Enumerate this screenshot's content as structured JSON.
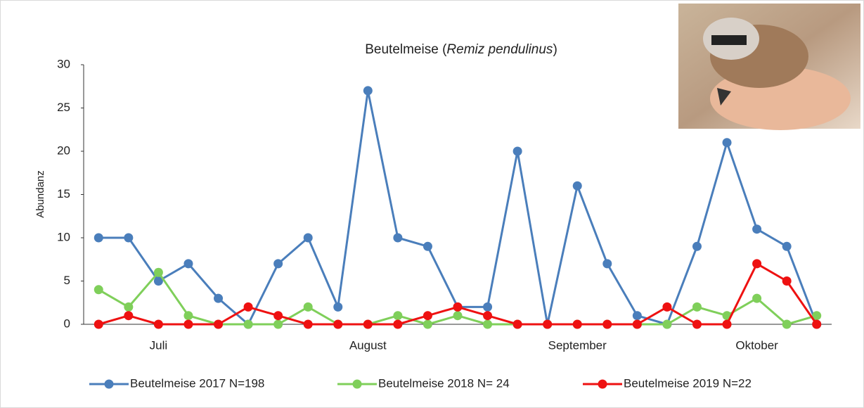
{
  "chart_data": {
    "type": "line",
    "title": [
      "Beutelmeise (",
      "Remiz pendulinus",
      ")"
    ],
    "y_label": "Abundanz",
    "categories": [
      null,
      null,
      "Juli",
      null,
      null,
      null,
      null,
      null,
      null,
      "August",
      null,
      null,
      null,
      null,
      null,
      null,
      "September",
      null,
      null,
      null,
      null,
      null,
      "Oktober",
      null,
      null
    ],
    "series": [
      {
        "name": "Beutelmeise 2017 N=198",
        "color": "#4a7ebb",
        "values": [
          10,
          10,
          5,
          7,
          3,
          0,
          7,
          10,
          2,
          27,
          10,
          9,
          2,
          2,
          20,
          0,
          16,
          7,
          1,
          0,
          9,
          21,
          11,
          9,
          0
        ]
      },
      {
        "name": "Beutelmeise 2018 N= 24",
        "color": "#7fcf5a",
        "values": [
          4,
          2,
          6,
          1,
          0,
          0,
          0,
          2,
          0,
          0,
          1,
          0,
          1,
          0,
          0,
          0,
          0,
          0,
          0,
          0,
          2,
          1,
          3,
          0,
          1
        ]
      },
      {
        "name": "Beutelmeise 2019 N=22",
        "color": "#ee1111",
        "values": [
          0,
          1,
          0,
          0,
          0,
          2,
          1,
          0,
          0,
          0,
          0,
          1,
          2,
          1,
          0,
          0,
          0,
          0,
          0,
          2,
          0,
          0,
          7,
          5,
          0
        ]
      }
    ],
    "ylim": [
      0,
      30
    ],
    "yticks": [
      0,
      5,
      10,
      15,
      20,
      25,
      30
    ],
    "grid": false,
    "legend": "bottom"
  }
}
